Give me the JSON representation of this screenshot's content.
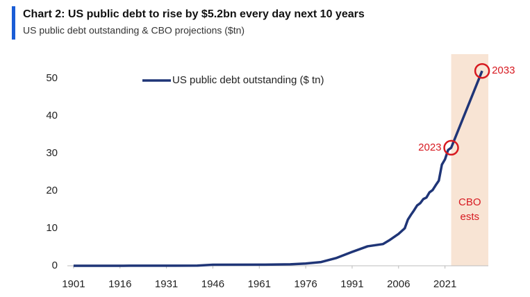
{
  "chart_data": {
    "type": "line",
    "title": "Chart 2: US public debt to rise by $5.2bn every day next 10 years",
    "subtitle": "US public debt outstanding & CBO projections ($tn)",
    "x": [
      1901,
      1911,
      1917,
      1919,
      1930,
      1941,
      1946,
      1961,
      1971,
      1976,
      1981,
      1986,
      1991,
      1996,
      2001,
      2003,
      2006,
      2008,
      2009,
      2010,
      2011,
      2012,
      2013,
      2014,
      2015,
      2016,
      2017,
      2018,
      2019,
      2020,
      2021,
      2022,
      2023,
      2033
    ],
    "series": [
      {
        "name": "US public debt outstanding ($ tn)",
        "color": "#1f3577",
        "values": [
          0.0,
          0.0,
          0.0,
          0.03,
          0.02,
          0.05,
          0.27,
          0.29,
          0.4,
          0.6,
          1.0,
          2.1,
          3.7,
          5.2,
          5.8,
          6.8,
          8.5,
          10.0,
          12.3,
          13.6,
          14.8,
          16.1,
          16.7,
          17.8,
          18.2,
          19.6,
          20.2,
          21.5,
          22.7,
          27.0,
          28.4,
          30.9,
          31.5,
          52.0
        ]
      }
    ],
    "highlights": [
      {
        "x": 2023,
        "y": 31.5,
        "label": "2023",
        "color": "#d71920"
      },
      {
        "x": 2033,
        "y": 52.0,
        "label": "2033",
        "color": "#d71920"
      }
    ],
    "shade": {
      "range": [
        2023,
        2035
      ],
      "label": "CBO ests",
      "color": "#f8e4d4"
    },
    "xlim": [
      1899,
      2035
    ],
    "xticks": [
      1901,
      1916,
      1931,
      1946,
      1961,
      1976,
      1991,
      2006,
      2021
    ],
    "ylim": [
      0,
      55
    ],
    "yticks": [
      0,
      10,
      20,
      30,
      40,
      50
    ],
    "legend": "top-left"
  }
}
